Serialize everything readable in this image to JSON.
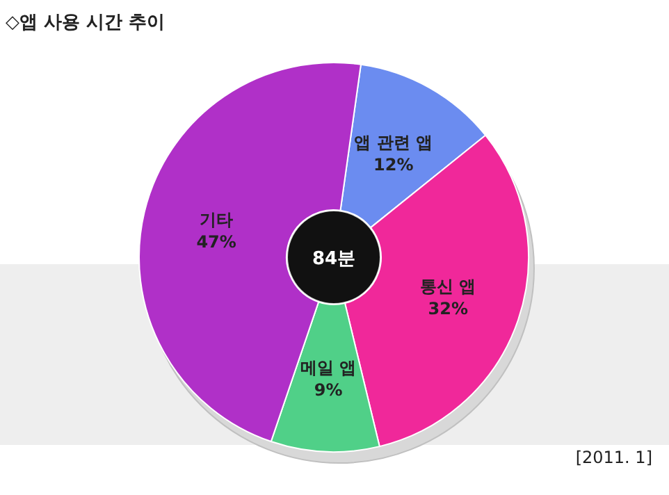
{
  "chart_data": {
    "type": "donut",
    "title": "◇앱 사용 시간 추이",
    "categories": [
      "앱 관련 앱",
      "통신 앱",
      "메일 앱",
      "기타"
    ],
    "values": [
      12,
      32,
      9,
      47
    ],
    "colors": [
      "#6b8cf0",
      "#f0289a",
      "#50d088",
      "#b030c8"
    ],
    "value_labels": [
      "12%",
      "32%",
      "9%",
      "47%"
    ],
    "annotations": [
      "84분",
      "[2011. 1]"
    ]
  }
}
